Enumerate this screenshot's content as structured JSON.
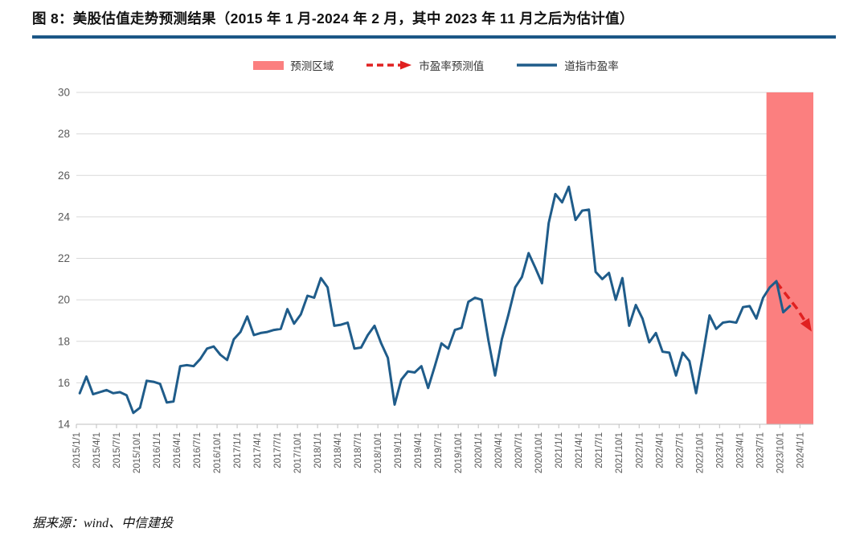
{
  "figure": {
    "title": "图 8：美股估值走势预测结果（2015 年 1 月-2024 年 2 月，其中 2023 年 11 月之后为估计值）",
    "source_note": "据来源：wind、中信建投"
  },
  "colors": {
    "title_rule": "#1B5786",
    "forecast_region": "#FB7F7F",
    "forecast_line": "#E02020",
    "dow_pe_line": "#1F5C8A",
    "grid": "#D9D9D9",
    "axis": "#BFBFBF",
    "tick_text": "#595959"
  },
  "legend": [
    {
      "label": "预测区域",
      "type": "area",
      "color": "#FB7F7F"
    },
    {
      "label": "市盈率预测值",
      "type": "dashed-arrow",
      "color": "#E02020"
    },
    {
      "label": "道指市盈率",
      "type": "line",
      "color": "#1F5C8A"
    }
  ],
  "chart_data": {
    "type": "line",
    "title": "美股估值走势预测结果",
    "ylim": [
      14,
      30
    ],
    "y_ticks": [
      14,
      16,
      18,
      20,
      22,
      24,
      26,
      28,
      30
    ],
    "grid": true,
    "legend_position": "top",
    "x_start": "2015/1",
    "x_end": "2024/2",
    "x_tick_labels": [
      "2015/1/1",
      "2015/4/1",
      "2015/7/1",
      "2015/10/1",
      "2016/1/1",
      "2016/4/1",
      "2016/7/1",
      "2016/10/1",
      "2017/1/1",
      "2017/4/1",
      "2017/7/1",
      "2017/10/1",
      "2018/1/1",
      "2018/4/1",
      "2018/7/1",
      "2018/10/1",
      "2019/1/1",
      "2019/4/1",
      "2019/7/1",
      "2019/10/1",
      "2020/1/1",
      "2020/4/1",
      "2020/7/1",
      "2020/10/1",
      "2021/1/1",
      "2021/4/1",
      "2021/7/1",
      "2021/10/1",
      "2022/1/1",
      "2022/4/1",
      "2022/7/1",
      "2022/10/1",
      "2023/1/1",
      "2023/4/1",
      "2023/7/1",
      "2023/10/1",
      "2024/1/1"
    ],
    "forecast_region": {
      "from": "2023/8",
      "to": "2024/2",
      "color": "#FB7F7F",
      "label": "预测区域"
    },
    "series": [
      {
        "name": "道指市盈率",
        "color": "#1F5C8A",
        "style": "solid",
        "start_month": "2015/1",
        "values": [
          15.5,
          16.3,
          15.45,
          15.55,
          15.65,
          15.5,
          15.55,
          15.4,
          14.55,
          14.8,
          16.1,
          16.05,
          15.95,
          15.05,
          15.1,
          16.8,
          16.85,
          16.8,
          17.15,
          17.65,
          17.75,
          17.35,
          17.1,
          18.1,
          18.45,
          19.2,
          18.3,
          18.4,
          18.45,
          18.55,
          18.6,
          19.55,
          18.85,
          19.3,
          20.2,
          20.1,
          21.05,
          20.6,
          18.75,
          18.8,
          18.9,
          17.65,
          17.7,
          18.3,
          18.75,
          17.9,
          17.2,
          14.95,
          16.15,
          16.55,
          16.5,
          16.8,
          15.75,
          16.8,
          17.9,
          17.65,
          18.55,
          18.65,
          19.9,
          20.1,
          20.0,
          18.05,
          16.35,
          18.1,
          19.3,
          20.6,
          21.1,
          22.25,
          21.55,
          20.8,
          23.7,
          25.1,
          24.7,
          25.45,
          23.85,
          24.3,
          24.35,
          21.35,
          21.0,
          21.3,
          20.0,
          21.05,
          18.75,
          19.75,
          19.1,
          17.95,
          18.4,
          17.5,
          17.45,
          16.35,
          17.45,
          17.05,
          15.5,
          17.3,
          19.25,
          18.6,
          18.9,
          18.95,
          18.9,
          19.65,
          19.7,
          19.1,
          20.1,
          20.6,
          20.9,
          19.4,
          19.7
        ]
      },
      {
        "name": "市盈率预测值",
        "color": "#E02020",
        "style": "dashed-arrow",
        "points": [
          {
            "x": "2023/9",
            "y": 20.85
          },
          {
            "x": "2023/12",
            "y": 19.6
          },
          {
            "x": "2024/2",
            "y": 18.6
          }
        ]
      }
    ]
  }
}
